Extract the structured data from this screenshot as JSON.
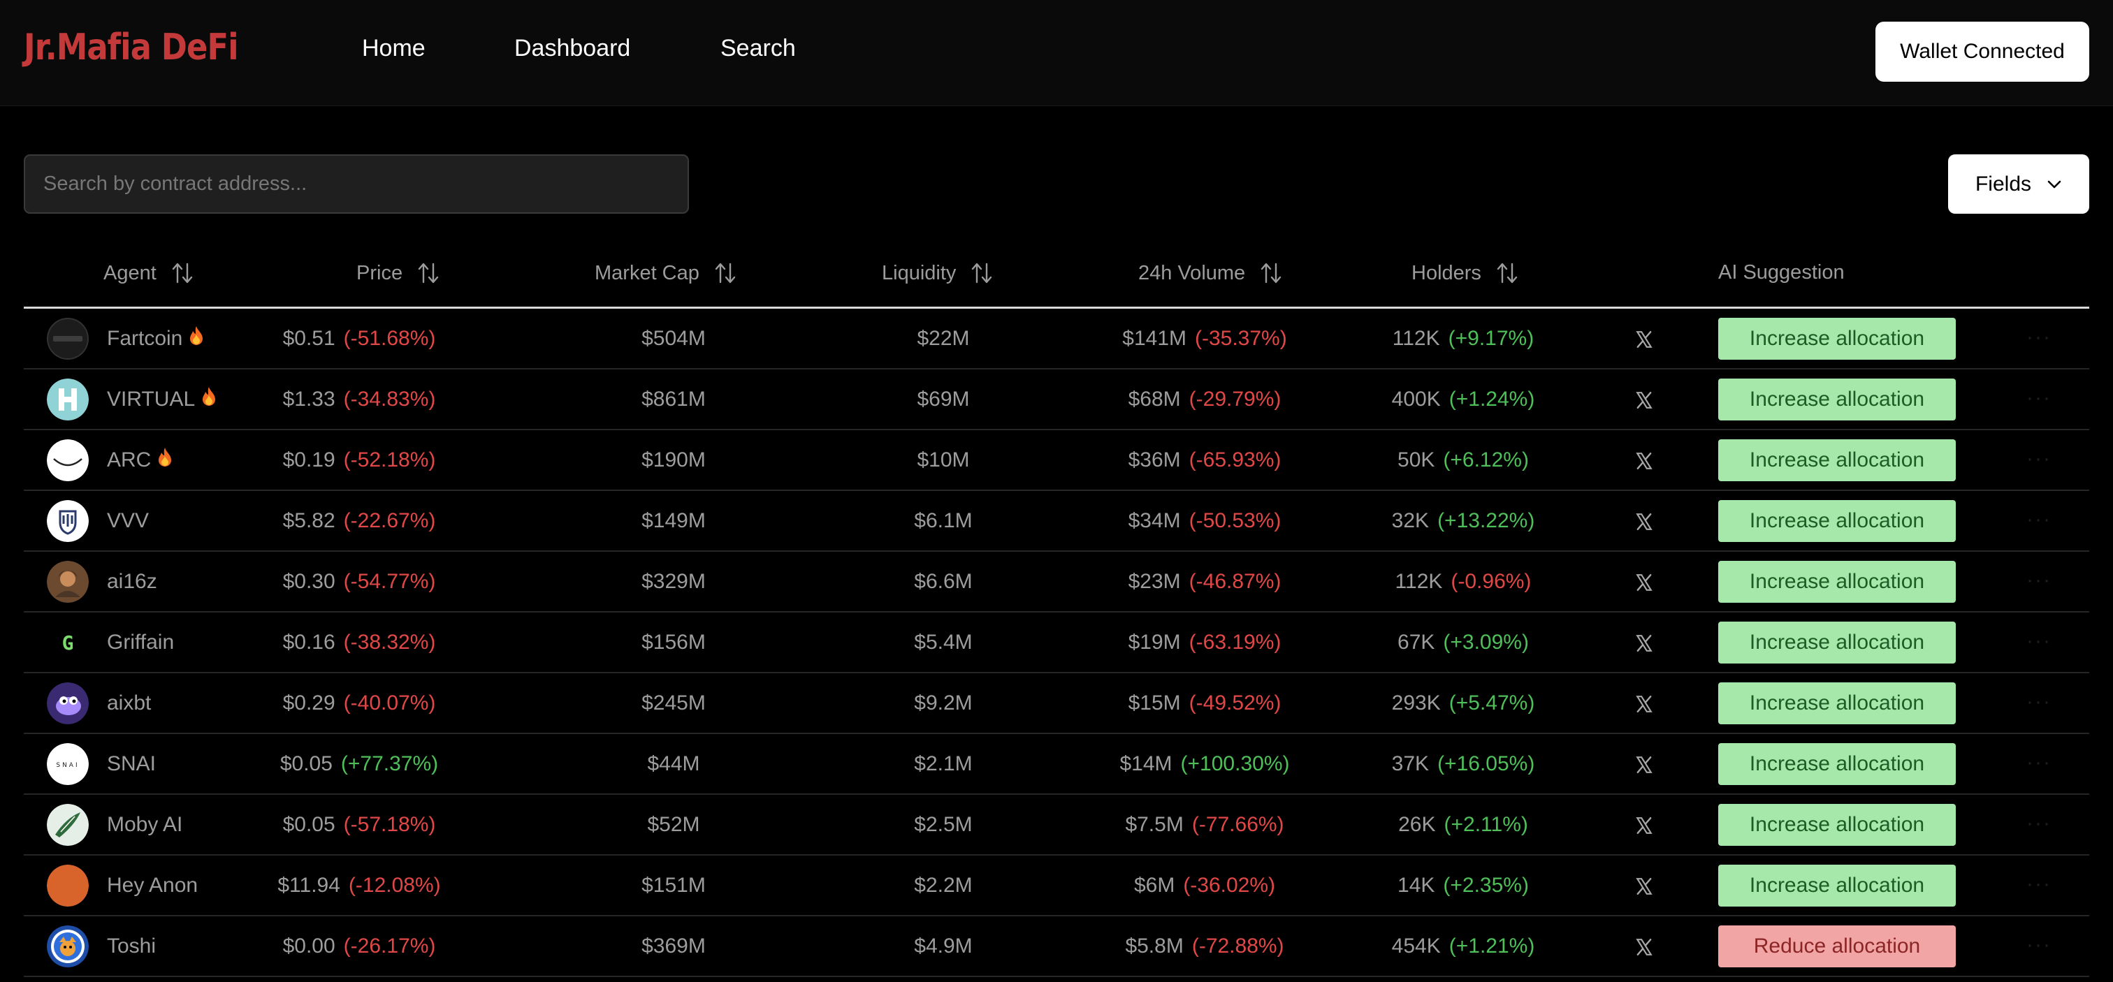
{
  "app": {
    "logo": "Jr.Mafia DeFi",
    "nav": [
      "Home",
      "Dashboard",
      "Search"
    ],
    "wallet_button": "Wallet Connected"
  },
  "search": {
    "placeholder": "Search by contract address...",
    "value": ""
  },
  "fields_button": "Fields",
  "table": {
    "columns": [
      "Agent",
      "Price",
      "Market Cap",
      "Liquidity",
      "24h Volume",
      "Holders",
      "AI Suggestion"
    ],
    "rows": [
      {
        "agent": "Fartcoin",
        "hot": true,
        "price": "$0.51",
        "price_change": "(-51.68%)",
        "price_dir": "neg",
        "market_cap": "$504M",
        "liquidity": "$22M",
        "volume": "$141M",
        "volume_change": "(-35.37%)",
        "volume_dir": "neg",
        "holders": "112K",
        "holders_change": "(+9.17%)",
        "holders_dir": "pos",
        "suggestion": "Increase allocation",
        "suggestion_type": "increase"
      },
      {
        "agent": "VIRTUAL",
        "hot": true,
        "price": "$1.33",
        "price_change": "(-34.83%)",
        "price_dir": "neg",
        "market_cap": "$861M",
        "liquidity": "$69M",
        "volume": "$68M",
        "volume_change": "(-29.79%)",
        "volume_dir": "neg",
        "holders": "400K",
        "holders_change": "(+1.24%)",
        "holders_dir": "pos",
        "suggestion": "Increase allocation",
        "suggestion_type": "increase"
      },
      {
        "agent": "ARC",
        "hot": true,
        "price": "$0.19",
        "price_change": "(-52.18%)",
        "price_dir": "neg",
        "market_cap": "$190M",
        "liquidity": "$10M",
        "volume": "$36M",
        "volume_change": "(-65.93%)",
        "volume_dir": "neg",
        "holders": "50K",
        "holders_change": "(+6.12%)",
        "holders_dir": "pos",
        "suggestion": "Increase allocation",
        "suggestion_type": "increase"
      },
      {
        "agent": "VVV",
        "hot": false,
        "price": "$5.82",
        "price_change": "(-22.67%)",
        "price_dir": "neg",
        "market_cap": "$149M",
        "liquidity": "$6.1M",
        "volume": "$34M",
        "volume_change": "(-50.53%)",
        "volume_dir": "neg",
        "holders": "32K",
        "holders_change": "(+13.22%)",
        "holders_dir": "pos",
        "suggestion": "Increase allocation",
        "suggestion_type": "increase"
      },
      {
        "agent": "ai16z",
        "hot": false,
        "price": "$0.30",
        "price_change": "(-54.77%)",
        "price_dir": "neg",
        "market_cap": "$329M",
        "liquidity": "$6.6M",
        "volume": "$23M",
        "volume_change": "(-46.87%)",
        "volume_dir": "neg",
        "holders": "112K",
        "holders_change": "(-0.96%)",
        "holders_dir": "neg",
        "suggestion": "Increase allocation",
        "suggestion_type": "increase"
      },
      {
        "agent": "Griffain",
        "hot": false,
        "price": "$0.16",
        "price_change": "(-38.32%)",
        "price_dir": "neg",
        "market_cap": "$156M",
        "liquidity": "$5.4M",
        "volume": "$19M",
        "volume_change": "(-63.19%)",
        "volume_dir": "neg",
        "holders": "67K",
        "holders_change": "(+3.09%)",
        "holders_dir": "pos",
        "suggestion": "Increase allocation",
        "suggestion_type": "increase"
      },
      {
        "agent": "aixbt",
        "hot": false,
        "price": "$0.29",
        "price_change": "(-40.07%)",
        "price_dir": "neg",
        "market_cap": "$245M",
        "liquidity": "$9.2M",
        "volume": "$15M",
        "volume_change": "(-49.52%)",
        "volume_dir": "neg",
        "holders": "293K",
        "holders_change": "(+5.47%)",
        "holders_dir": "pos",
        "suggestion": "Increase allocation",
        "suggestion_type": "increase"
      },
      {
        "agent": "SNAI",
        "hot": false,
        "price": "$0.05",
        "price_change": "(+77.37%)",
        "price_dir": "pos",
        "market_cap": "$44M",
        "liquidity": "$2.1M",
        "volume": "$14M",
        "volume_change": "(+100.30%)",
        "volume_dir": "pos",
        "holders": "37K",
        "holders_change": "(+16.05%)",
        "holders_dir": "pos",
        "suggestion": "Increase allocation",
        "suggestion_type": "increase"
      },
      {
        "agent": "Moby AI",
        "hot": false,
        "price": "$0.05",
        "price_change": "(-57.18%)",
        "price_dir": "neg",
        "market_cap": "$52M",
        "liquidity": "$2.5M",
        "volume": "$7.5M",
        "volume_change": "(-77.66%)",
        "volume_dir": "neg",
        "holders": "26K",
        "holders_change": "(+2.11%)",
        "holders_dir": "pos",
        "suggestion": "Increase allocation",
        "suggestion_type": "increase"
      },
      {
        "agent": "Hey Anon",
        "hot": false,
        "price": "$11.94",
        "price_change": "(-12.08%)",
        "price_dir": "neg",
        "market_cap": "$151M",
        "liquidity": "$2.2M",
        "volume": "$6M",
        "volume_change": "(-36.02%)",
        "volume_dir": "neg",
        "holders": "14K",
        "holders_change": "(+2.35%)",
        "holders_dir": "pos",
        "suggestion": "Increase allocation",
        "suggestion_type": "increase"
      },
      {
        "agent": "Toshi",
        "hot": false,
        "price": "$0.00",
        "price_change": "(-26.17%)",
        "price_dir": "neg",
        "market_cap": "$369M",
        "liquidity": "$4.9M",
        "volume": "$5.8M",
        "volume_change": "(-72.88%)",
        "volume_dir": "neg",
        "holders": "454K",
        "holders_change": "(+1.21%)",
        "holders_dir": "pos",
        "suggestion": "Reduce allocation",
        "suggestion_type": "reduce"
      }
    ]
  },
  "colors": {
    "brand": "#c43a3a",
    "negative": "#e04848",
    "positive": "#4fbf5a",
    "increase_bg": "#a5e8a9",
    "reduce_bg": "#f2a5a5"
  },
  "icons": [
    "fire-icon",
    "x-social-icon",
    "sort-icon",
    "chevron-down-icon",
    "more-icon"
  ]
}
